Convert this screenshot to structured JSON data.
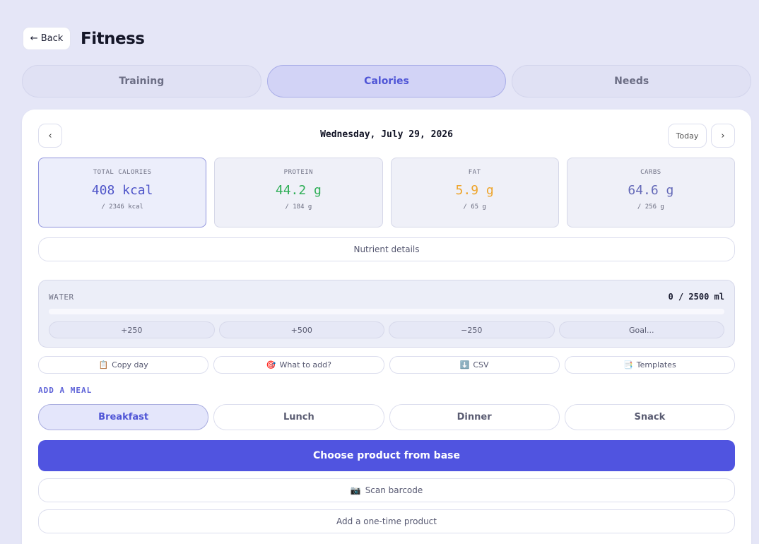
{
  "header": {
    "back_label": "← Back",
    "title": "Fitness"
  },
  "tabs": [
    {
      "label": "Training",
      "active": false
    },
    {
      "label": "Calories",
      "active": true
    },
    {
      "label": "Needs",
      "active": false
    }
  ],
  "date_nav": {
    "prev": "‹",
    "date": "Wednesday, July 29, 2026",
    "today": "Today",
    "next": "›"
  },
  "stats": [
    {
      "label": "TOTAL CALORIES",
      "value": "408 kcal",
      "goal": "/ 2346 kcal",
      "color": "#4f55c9"
    },
    {
      "label": "PROTEIN",
      "value": "44.2 g",
      "goal": "/ 184 g",
      "color": "#2fae57"
    },
    {
      "label": "FAT",
      "value": "5.9 g",
      "goal": "/ 65 g",
      "color": "#eea42a"
    },
    {
      "label": "CARBS",
      "value": "64.6 g",
      "goal": "/ 256 g",
      "color": "#6469b8"
    }
  ],
  "nutrient_details": "Nutrient details",
  "water": {
    "label": "WATER",
    "amount": "0 / 2500 ml",
    "progress": 0,
    "buttons": [
      "+250",
      "+500",
      "−250",
      "Goal..."
    ]
  },
  "actions": [
    {
      "icon": "📋",
      "label": "Copy day"
    },
    {
      "icon": "🎯",
      "label": "What to add?"
    },
    {
      "icon": "⬇️",
      "label": "CSV"
    },
    {
      "icon": "📑",
      "label": "Templates"
    }
  ],
  "add_meal": {
    "label": "ADD A MEAL",
    "meals": [
      {
        "label": "Breakfast",
        "active": true
      },
      {
        "label": "Lunch",
        "active": false
      },
      {
        "label": "Dinner",
        "active": false
      },
      {
        "label": "Snack",
        "active": false
      }
    ]
  },
  "choose_product": "Choose product from base",
  "scan_barcode": {
    "icon": "📷",
    "label": "Scan barcode"
  },
  "one_time_product": "Add a one-time product"
}
